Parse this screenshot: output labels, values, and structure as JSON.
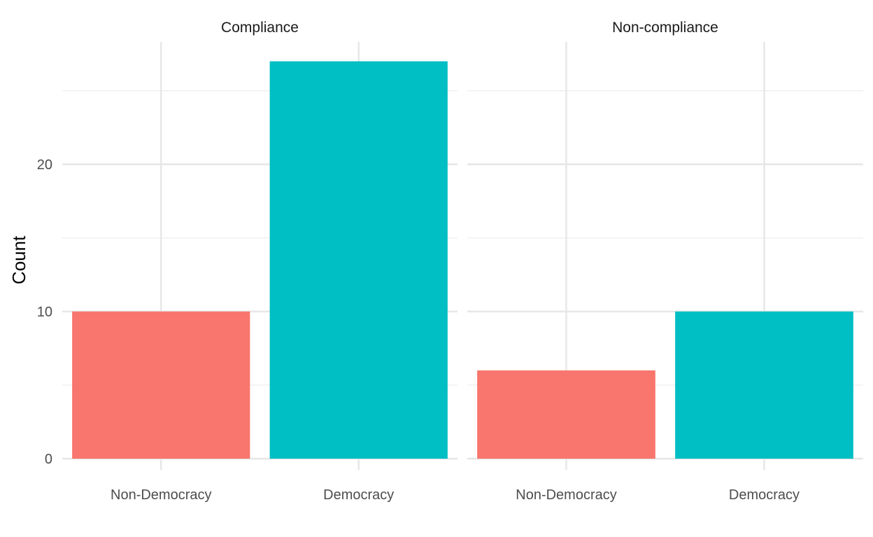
{
  "chart_data": {
    "type": "bar",
    "ylabel": "Count",
    "ylim": [
      0,
      27
    ],
    "y_ticks": [
      0,
      10,
      20
    ],
    "y_tick_labels": [
      "0",
      "10",
      "20"
    ],
    "grid": true,
    "facets": [
      {
        "title": "Compliance",
        "categories": [
          "Non-Democracy",
          "Democracy"
        ],
        "values": [
          10,
          27
        ]
      },
      {
        "title": "Non-compliance",
        "categories": [
          "Non-Democracy",
          "Democracy"
        ],
        "values": [
          6,
          10
        ]
      }
    ],
    "category_colors": {
      "Non-Democracy": "#F8766D",
      "Democracy": "#00BFC4"
    }
  }
}
